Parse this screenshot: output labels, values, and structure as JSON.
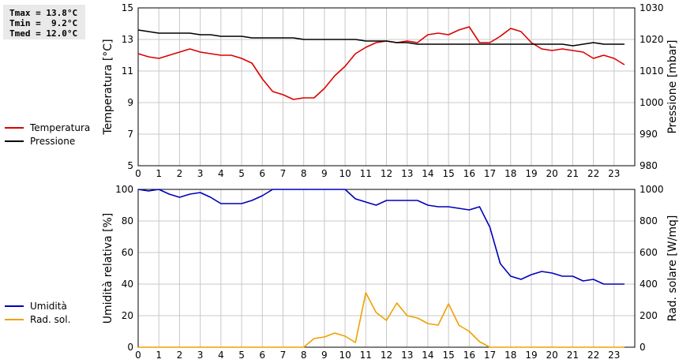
{
  "stats": {
    "tmax": "Tmax = 13.8°C",
    "tmin": "Tmin =  9.2°C",
    "tmed": "Tmed = 12.0°C"
  },
  "colors": {
    "temperature": "#dd0000",
    "pressure": "#000000",
    "humidity": "#0000bb",
    "solar": "#f0a000",
    "grid": "#c8c8c8"
  },
  "chart_data": [
    {
      "type": "line",
      "x_ticks": [
        "0",
        "1",
        "2",
        "3",
        "4",
        "5",
        "6",
        "7",
        "8",
        "9",
        "10",
        "11",
        "12",
        "13",
        "14",
        "15",
        "16",
        "17",
        "18",
        "19",
        "20",
        "21",
        "22",
        "23"
      ],
      "xlim": [
        0,
        24
      ],
      "ylabel": "Temperatura [°C]",
      "ylim": [
        5,
        15
      ],
      "y_ticks": [
        "15",
        "13",
        "11",
        "9",
        "7",
        "5"
      ],
      "y2label": "Pressione [mbar]",
      "y2lim": [
        980,
        1030
      ],
      "y2_ticks": [
        "1030",
        "1020",
        "1010",
        "1000",
        "990",
        "980"
      ],
      "grid": true,
      "legend": [
        "Temperatura",
        "Pressione"
      ],
      "series": [
        {
          "name": "Temperatura",
          "axis": "left",
          "x": [
            0,
            0.5,
            1,
            1.5,
            2,
            2.5,
            3,
            3.5,
            4,
            4.5,
            5,
            5.5,
            6,
            6.5,
            7,
            7.5,
            8,
            8.5,
            9,
            9.5,
            10,
            10.5,
            11,
            11.5,
            12,
            12.5,
            13,
            13.5,
            14,
            14.5,
            15,
            15.5,
            16,
            16.5,
            17,
            17.5,
            18,
            18.5,
            19,
            19.5,
            20,
            20.5,
            21,
            21.5,
            22,
            22.5,
            23,
            23.5
          ],
          "values": [
            12.1,
            11.9,
            11.8,
            12.0,
            12.2,
            12.4,
            12.2,
            12.1,
            12.0,
            12.0,
            11.8,
            11.5,
            10.5,
            9.7,
            9.5,
            9.2,
            9.3,
            9.3,
            9.9,
            10.7,
            11.3,
            12.1,
            12.5,
            12.8,
            12.9,
            12.8,
            12.9,
            12.8,
            13.3,
            13.4,
            13.3,
            13.6,
            13.8,
            12.8,
            12.8,
            13.2,
            13.7,
            13.5,
            12.8,
            12.4,
            12.3,
            12.4,
            12.3,
            12.2,
            11.8,
            12.0,
            11.8,
            11.4
          ]
        },
        {
          "name": "Pressione",
          "axis": "right",
          "x": [
            0,
            0.5,
            1,
            1.5,
            2,
            2.5,
            3,
            3.5,
            4,
            4.5,
            5,
            5.5,
            6,
            6.5,
            7,
            7.5,
            8,
            8.5,
            9,
            9.5,
            10,
            10.5,
            11,
            11.5,
            12,
            12.5,
            13,
            13.5,
            14,
            14.5,
            15,
            15.5,
            16,
            16.5,
            17,
            17.5,
            18,
            18.5,
            19,
            19.5,
            20,
            20.5,
            21,
            21.5,
            22,
            22.5,
            23,
            23.5
          ],
          "values": [
            1023,
            1022.5,
            1022,
            1022,
            1022,
            1022,
            1021.5,
            1021.5,
            1021,
            1021,
            1021,
            1020.5,
            1020.5,
            1020.5,
            1020.5,
            1020.5,
            1020,
            1020,
            1020,
            1020,
            1020,
            1020,
            1019.5,
            1019.5,
            1019.5,
            1019,
            1019,
            1018.5,
            1018.5,
            1018.5,
            1018.5,
            1018.5,
            1018.5,
            1018.5,
            1018.5,
            1018.5,
            1018.5,
            1018.5,
            1018.5,
            1018.5,
            1018.5,
            1018.5,
            1018,
            1018.5,
            1019,
            1018.5,
            1018.5,
            1018.5
          ]
        }
      ]
    },
    {
      "type": "line",
      "x_ticks": [
        "0",
        "1",
        "2",
        "3",
        "4",
        "5",
        "6",
        "7",
        "8",
        "9",
        "10",
        "11",
        "12",
        "13",
        "14",
        "15",
        "16",
        "17",
        "18",
        "19",
        "20",
        "21",
        "22",
        "23"
      ],
      "xlim": [
        0,
        24
      ],
      "ylabel": "Umidità relativa [%]",
      "ylim": [
        0,
        100
      ],
      "y_ticks": [
        "100",
        "80",
        "60",
        "40",
        "20",
        "0"
      ],
      "y2label": "Rad. solare [W/mq]",
      "y2lim": [
        0,
        1000
      ],
      "y2_ticks": [
        "1000",
        "800",
        "600",
        "400",
        "200",
        "0"
      ],
      "grid": true,
      "legend": [
        "Umidità",
        "Rad. sol."
      ],
      "series": [
        {
          "name": "Umidità",
          "axis": "left",
          "x": [
            0,
            0.5,
            1,
            1.5,
            2,
            2.5,
            3,
            3.5,
            4,
            4.5,
            5,
            5.5,
            6,
            6.5,
            7,
            7.5,
            8,
            8.5,
            9,
            9.5,
            10,
            10.5,
            11,
            11.5,
            12,
            12.5,
            13,
            13.5,
            14,
            14.5,
            15,
            15.5,
            16,
            16.5,
            17,
            17.5,
            18,
            18.5,
            19,
            19.5,
            20,
            20.5,
            21,
            21.5,
            22,
            22.5,
            23,
            23.5
          ],
          "values": [
            100,
            99,
            100,
            97,
            95,
            97,
            98,
            95,
            91,
            91,
            91,
            93,
            96,
            100,
            100,
            100,
            100,
            100,
            100,
            100,
            100,
            94,
            92,
            90,
            93,
            93,
            93,
            93,
            90,
            89,
            89,
            88,
            87,
            89,
            76,
            53,
            45,
            43,
            46,
            48,
            47,
            45,
            45,
            42,
            43,
            40,
            40,
            40
          ]
        },
        {
          "name": "Rad. sol.",
          "axis": "right",
          "x": [
            0,
            0.5,
            1,
            1.5,
            2,
            2.5,
            3,
            3.5,
            4,
            4.5,
            5,
            5.5,
            6,
            6.5,
            7,
            7.5,
            8,
            8.5,
            9,
            9.5,
            10,
            10.5,
            11,
            11.5,
            12,
            12.5,
            13,
            13.5,
            14,
            14.5,
            15,
            15.5,
            16,
            16.5,
            17,
            17.5,
            18,
            18.5,
            19,
            19.5,
            20,
            20.5,
            21,
            21.5,
            22,
            22.5,
            23,
            23.5
          ],
          "values": [
            0,
            0,
            0,
            0,
            0,
            0,
            0,
            0,
            0,
            0,
            0,
            0,
            0,
            0,
            0,
            0,
            0,
            55,
            65,
            90,
            70,
            30,
            345,
            220,
            170,
            280,
            200,
            185,
            150,
            140,
            275,
            140,
            100,
            35,
            0,
            0,
            0,
            0,
            0,
            0,
            0,
            0,
            0,
            0,
            0,
            0,
            0,
            0
          ]
        }
      ]
    }
  ]
}
